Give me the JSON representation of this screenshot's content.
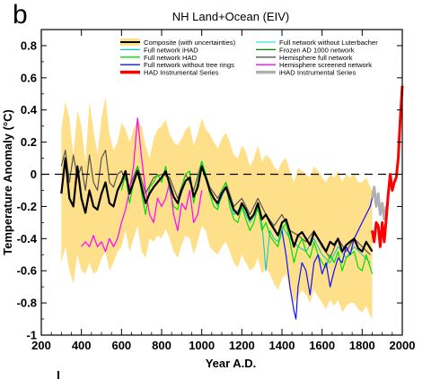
{
  "panel_label": "b",
  "chart_data": {
    "type": "line",
    "title": "NH Land+Ocean (EIV)",
    "xlabel": "Year A.D.",
    "ylabel": "Temperature Anomaly (°C)",
    "xlim": [
      200,
      2000
    ],
    "ylim": [
      -1.0,
      0.9
    ],
    "xticks": [
      200,
      400,
      600,
      800,
      1000,
      1200,
      1400,
      1600,
      1800,
      2000
    ],
    "yticks": [
      -1,
      -0.8,
      -0.6,
      -0.4,
      -0.2,
      0,
      0.2,
      0.4,
      0.6,
      0.8
    ],
    "ytick_labels": [
      "-1",
      "-0.8",
      "-0.6",
      "-0.4",
      "-0.2",
      "0",
      "0.2",
      "0.4",
      "0.6",
      "0.8"
    ],
    "zero_line": "dashed",
    "grid": false,
    "legend_position": "top",
    "legend_columns": 2,
    "legend": [
      {
        "label": "Composite (with uncertainties)",
        "color": "#000000",
        "swatch": "band"
      },
      {
        "label": "Full network iHAD",
        "color": "#00c8c8"
      },
      {
        "label": "Full network HAD",
        "color": "#00e000"
      },
      {
        "label": "Full network without tree rings",
        "color": "#1010ff"
      },
      {
        "label": "HAD Instrumental Series",
        "color": "#ff0000",
        "thick": true
      },
      {
        "label": "Full network without Luterbacher",
        "color": "#33e8e8"
      },
      {
        "label": "Frozen AD 1000 network",
        "color": "#008000"
      },
      {
        "label": "Hemisphere full network",
        "color": "#555555"
      },
      {
        "label": "Hemisphere screened network",
        "color": "#ff00ff"
      },
      {
        "label": "iHAD Instrumental Series",
        "color": "#b0b0b0",
        "thick": true
      }
    ],
    "uncertainty_band": {
      "color": "#ffe08a",
      "x": [
        300,
        320,
        340,
        360,
        380,
        400,
        420,
        440,
        460,
        480,
        500,
        520,
        540,
        560,
        580,
        600,
        620,
        640,
        660,
        680,
        700,
        720,
        740,
        760,
        780,
        800,
        820,
        840,
        860,
        880,
        900,
        920,
        940,
        960,
        980,
        1000,
        1020,
        1040,
        1060,
        1080,
        1100,
        1120,
        1140,
        1160,
        1180,
        1200,
        1220,
        1240,
        1260,
        1280,
        1300,
        1320,
        1340,
        1360,
        1380,
        1400,
        1420,
        1440,
        1460,
        1480,
        1500,
        1520,
        1540,
        1560,
        1580,
        1600,
        1620,
        1640,
        1660,
        1680,
        1700,
        1720,
        1740,
        1760,
        1780,
        1800,
        1820,
        1840,
        1850
      ],
      "upper": [
        0.28,
        0.45,
        0.35,
        0.12,
        0.4,
        0.3,
        0.08,
        0.45,
        0.28,
        0.12,
        0.35,
        0.48,
        0.25,
        0.15,
        0.2,
        0.32,
        0.28,
        0.2,
        0.28,
        0.34,
        0.3,
        0.18,
        0.1,
        0.22,
        0.28,
        0.3,
        0.34,
        0.25,
        0.2,
        0.18,
        0.22,
        0.28,
        0.3,
        0.18,
        0.25,
        0.35,
        0.28,
        0.25,
        0.2,
        0.16,
        0.22,
        0.26,
        0.2,
        0.12,
        0.1,
        0.18,
        0.14,
        0.05,
        0.1,
        0.18,
        0.08,
        0.12,
        0.1,
        0.05,
        0.02,
        0.08,
        0.1,
        0.02,
        -0.05,
        0.04,
        0.02,
        0.0,
        -0.02,
        0.05,
        0.02,
        -0.02,
        -0.05,
        0.0,
        -0.02,
        0.02,
        -0.05,
        0.0,
        -0.02,
        0.0,
        -0.05,
        -0.05,
        -0.02,
        -0.08,
        -0.1
      ],
      "lower": [
        -0.55,
        -0.45,
        -0.6,
        -0.68,
        -0.5,
        -0.6,
        -0.62,
        -0.55,
        -0.62,
        -0.6,
        -0.52,
        -0.48,
        -0.6,
        -0.55,
        -0.48,
        -0.45,
        -0.35,
        -0.48,
        -0.4,
        -0.32,
        -0.48,
        -0.52,
        -0.4,
        -0.42,
        -0.38,
        -0.4,
        -0.34,
        -0.4,
        -0.48,
        -0.52,
        -0.44,
        -0.38,
        -0.4,
        -0.5,
        -0.42,
        -0.32,
        -0.35,
        -0.45,
        -0.48,
        -0.5,
        -0.45,
        -0.42,
        -0.48,
        -0.55,
        -0.58,
        -0.5,
        -0.55,
        -0.6,
        -0.58,
        -0.52,
        -0.62,
        -0.58,
        -0.62,
        -0.68,
        -0.72,
        -0.65,
        -0.62,
        -0.72,
        -0.8,
        -0.76,
        -0.72,
        -0.75,
        -0.8,
        -0.72,
        -0.76,
        -0.8,
        -0.84,
        -0.78,
        -0.82,
        -0.78,
        -0.86,
        -0.82,
        -0.8,
        -0.8,
        -0.84,
        -0.86,
        -0.82,
        -0.88,
        -0.9
      ]
    },
    "series": [
      {
        "name": "Composite (with uncertainties)",
        "color": "#000000",
        "width": 2.2,
        "x": [
          300,
          320,
          340,
          360,
          380,
          400,
          420,
          440,
          460,
          480,
          500,
          520,
          540,
          560,
          580,
          600,
          620,
          640,
          660,
          680,
          700,
          720,
          740,
          760,
          780,
          800,
          820,
          840,
          860,
          880,
          900,
          920,
          940,
          960,
          980,
          1000,
          1020,
          1040,
          1060,
          1080,
          1100,
          1120,
          1140,
          1160,
          1180,
          1200,
          1220,
          1240,
          1260,
          1280,
          1300,
          1320,
          1340,
          1360,
          1380,
          1400,
          1420,
          1440,
          1460,
          1480,
          1500,
          1520,
          1540,
          1560,
          1580,
          1600,
          1620,
          1640,
          1660,
          1680,
          1700,
          1720,
          1740,
          1760,
          1780,
          1800,
          1820,
          1840,
          1850
        ],
        "y": [
          -0.12,
          0.1,
          -0.15,
          -0.2,
          0.05,
          -0.15,
          -0.24,
          -0.1,
          -0.2,
          -0.22,
          -0.12,
          -0.05,
          -0.18,
          -0.2,
          -0.1,
          -0.05,
          0.02,
          -0.12,
          -0.05,
          0.02,
          -0.08,
          -0.18,
          -0.12,
          -0.08,
          -0.05,
          -0.02,
          0.02,
          -0.06,
          -0.14,
          -0.18,
          -0.1,
          -0.04,
          -0.02,
          -0.14,
          -0.08,
          0.05,
          -0.02,
          -0.1,
          -0.15,
          -0.18,
          -0.12,
          -0.08,
          -0.15,
          -0.22,
          -0.25,
          -0.18,
          -0.22,
          -0.28,
          -0.25,
          -0.18,
          -0.28,
          -0.25,
          -0.3,
          -0.34,
          -0.38,
          -0.3,
          -0.28,
          -0.36,
          -0.45,
          -0.38,
          -0.36,
          -0.4,
          -0.44,
          -0.36,
          -0.4,
          -0.44,
          -0.48,
          -0.42,
          -0.44,
          -0.4,
          -0.48,
          -0.44,
          -0.42,
          -0.4,
          -0.46,
          -0.48,
          -0.42,
          -0.46,
          -0.48
        ]
      },
      {
        "name": "Hemisphere full network",
        "color": "#555555",
        "width": 1.2,
        "x": [
          300,
          320,
          340,
          360,
          380,
          400,
          420,
          440,
          460,
          480,
          500,
          520,
          540,
          560,
          580,
          600,
          640,
          680,
          720,
          760,
          800,
          840,
          880,
          920,
          960,
          1000,
          1040,
          1080,
          1120,
          1160,
          1200,
          1240,
          1280,
          1320,
          1360,
          1400,
          1440,
          1480,
          1520,
          1560,
          1600,
          1640,
          1680,
          1720,
          1760,
          1800,
          1840
        ],
        "y": [
          0.05,
          0.15,
          -0.05,
          0.12,
          -0.02,
          0.05,
          -0.1,
          0.12,
          -0.05,
          -0.1,
          0.1,
          0.15,
          -0.05,
          -0.08,
          0.0,
          0.02,
          -0.08,
          0.05,
          -0.12,
          -0.02,
          0.0,
          -0.02,
          -0.15,
          0.0,
          -0.1,
          0.08,
          -0.08,
          -0.15,
          -0.05,
          -0.2,
          -0.15,
          -0.25,
          -0.15,
          -0.25,
          -0.32,
          -0.25,
          -0.35,
          -0.38,
          -0.42,
          -0.35,
          -0.45,
          -0.52,
          -0.4,
          -0.48,
          -0.4,
          -0.45,
          -0.5
        ]
      },
      {
        "name": "Full network HAD",
        "color": "#00e000",
        "width": 1.2,
        "x": [
          600,
          620,
          640,
          660,
          680,
          700,
          720,
          740,
          760,
          780,
          800,
          820,
          840,
          860,
          880,
          900,
          920,
          940,
          960,
          980,
          1000,
          1020,
          1040,
          1060,
          1080,
          1100,
          1120,
          1140,
          1160,
          1180,
          1200,
          1220,
          1240,
          1260,
          1280,
          1300,
          1320,
          1340,
          1360,
          1380,
          1400,
          1420,
          1440,
          1460,
          1480,
          1500,
          1520,
          1540,
          1560,
          1580,
          1600,
          1620,
          1640,
          1660,
          1680,
          1700,
          1720,
          1740,
          1760,
          1780,
          1800,
          1820,
          1840,
          1850
        ],
        "y": [
          -0.1,
          0.0,
          -0.18,
          -0.05,
          0.05,
          -0.12,
          -0.25,
          -0.08,
          -0.05,
          0.0,
          -0.05,
          0.05,
          -0.1,
          -0.2,
          -0.22,
          -0.08,
          0.0,
          0.02,
          -0.18,
          -0.05,
          0.08,
          0.0,
          -0.12,
          -0.2,
          -0.22,
          -0.1,
          -0.05,
          -0.2,
          -0.28,
          -0.3,
          -0.2,
          -0.28,
          -0.35,
          -0.3,
          -0.2,
          -0.35,
          -0.3,
          -0.38,
          -0.42,
          -0.45,
          -0.35,
          -0.3,
          -0.42,
          -0.55,
          -0.45,
          -0.4,
          -0.48,
          -0.52,
          -0.42,
          -0.5,
          -0.55,
          -0.58,
          -0.5,
          -0.55,
          -0.48,
          -0.6,
          -0.52,
          -0.5,
          -0.48,
          -0.58,
          -0.6,
          -0.5,
          -0.58,
          -0.62
        ]
      },
      {
        "name": "Full network iHAD",
        "color": "#00c8c8",
        "width": 1.0,
        "x": [
          1000,
          1040,
          1080,
          1120,
          1160,
          1200,
          1240,
          1280,
          1300,
          1320,
          1340,
          1360,
          1380,
          1400,
          1440,
          1480,
          1520,
          1560,
          1600,
          1640,
          1680,
          1720,
          1760,
          1800,
          1840
        ],
        "y": [
          0.05,
          -0.1,
          -0.2,
          -0.08,
          -0.25,
          -0.2,
          -0.3,
          -0.22,
          -0.3,
          -0.6,
          -0.35,
          -0.4,
          -0.42,
          -0.32,
          -0.4,
          -0.45,
          -0.48,
          -0.4,
          -0.5,
          -0.55,
          -0.45,
          -0.52,
          -0.45,
          -0.5,
          -0.55
        ]
      },
      {
        "name": "Full network without tree rings",
        "color": "#1010ff",
        "width": 1.2,
        "x": [
          1400,
          1420,
          1440,
          1460,
          1470,
          1480,
          1500,
          1520,
          1540,
          1560,
          1580,
          1600,
          1620,
          1640,
          1660,
          1680,
          1700,
          1720,
          1740,
          1760,
          1780,
          1800,
          1820,
          1840,
          1850
        ],
        "y": [
          -0.35,
          -0.5,
          -0.7,
          -0.85,
          -0.9,
          -0.7,
          -0.55,
          -0.6,
          -0.75,
          -0.55,
          -0.5,
          -0.62,
          -0.55,
          -0.7,
          -0.6,
          -0.52,
          -0.55,
          -0.45,
          -0.5,
          -0.4,
          -0.35,
          -0.3,
          -0.25,
          -0.2,
          -0.15
        ]
      },
      {
        "name": "Hemisphere screened network",
        "color": "#ff00ff",
        "width": 1.2,
        "x": [
          400,
          420,
          440,
          460,
          480,
          500,
          520,
          540,
          560,
          580,
          600,
          620,
          640,
          660,
          680,
          700,
          720,
          740,
          760,
          780,
          800,
          820,
          840,
          860,
          880,
          900,
          920,
          940,
          960,
          980,
          1000
        ],
        "y": [
          -0.45,
          -0.42,
          -0.45,
          -0.38,
          -0.45,
          -0.42,
          -0.48,
          -0.4,
          -0.45,
          -0.4,
          -0.3,
          -0.22,
          -0.1,
          0.05,
          0.35,
          0.1,
          -0.1,
          -0.25,
          -0.3,
          -0.15,
          -0.2,
          -0.15,
          -0.05,
          -0.25,
          -0.35,
          -0.18,
          -0.22,
          -0.1,
          -0.3,
          -0.25,
          -0.1
        ]
      },
      {
        "name": "HAD Instrumental Series",
        "color": "#ff0000",
        "width": 3.0,
        "x": [
          1850,
          1860,
          1870,
          1880,
          1890,
          1900,
          1910,
          1920,
          1930,
          1940,
          1950,
          1960,
          1970,
          1980,
          1990,
          2000
        ],
        "y": [
          -0.35,
          -0.42,
          -0.3,
          -0.32,
          -0.45,
          -0.3,
          -0.42,
          -0.28,
          -0.12,
          0.0,
          -0.1,
          -0.05,
          -0.02,
          0.1,
          0.35,
          0.55
        ]
      },
      {
        "name": "iHAD Instrumental Series",
        "color": "#b0b0b0",
        "width": 3.0,
        "x": [
          1850,
          1860,
          1870,
          1880,
          1890,
          1900,
          1910,
          1920
        ],
        "y": [
          -0.15,
          -0.08,
          -0.2,
          -0.12,
          -0.25,
          -0.18,
          -0.28,
          -0.2
        ]
      }
    ]
  }
}
